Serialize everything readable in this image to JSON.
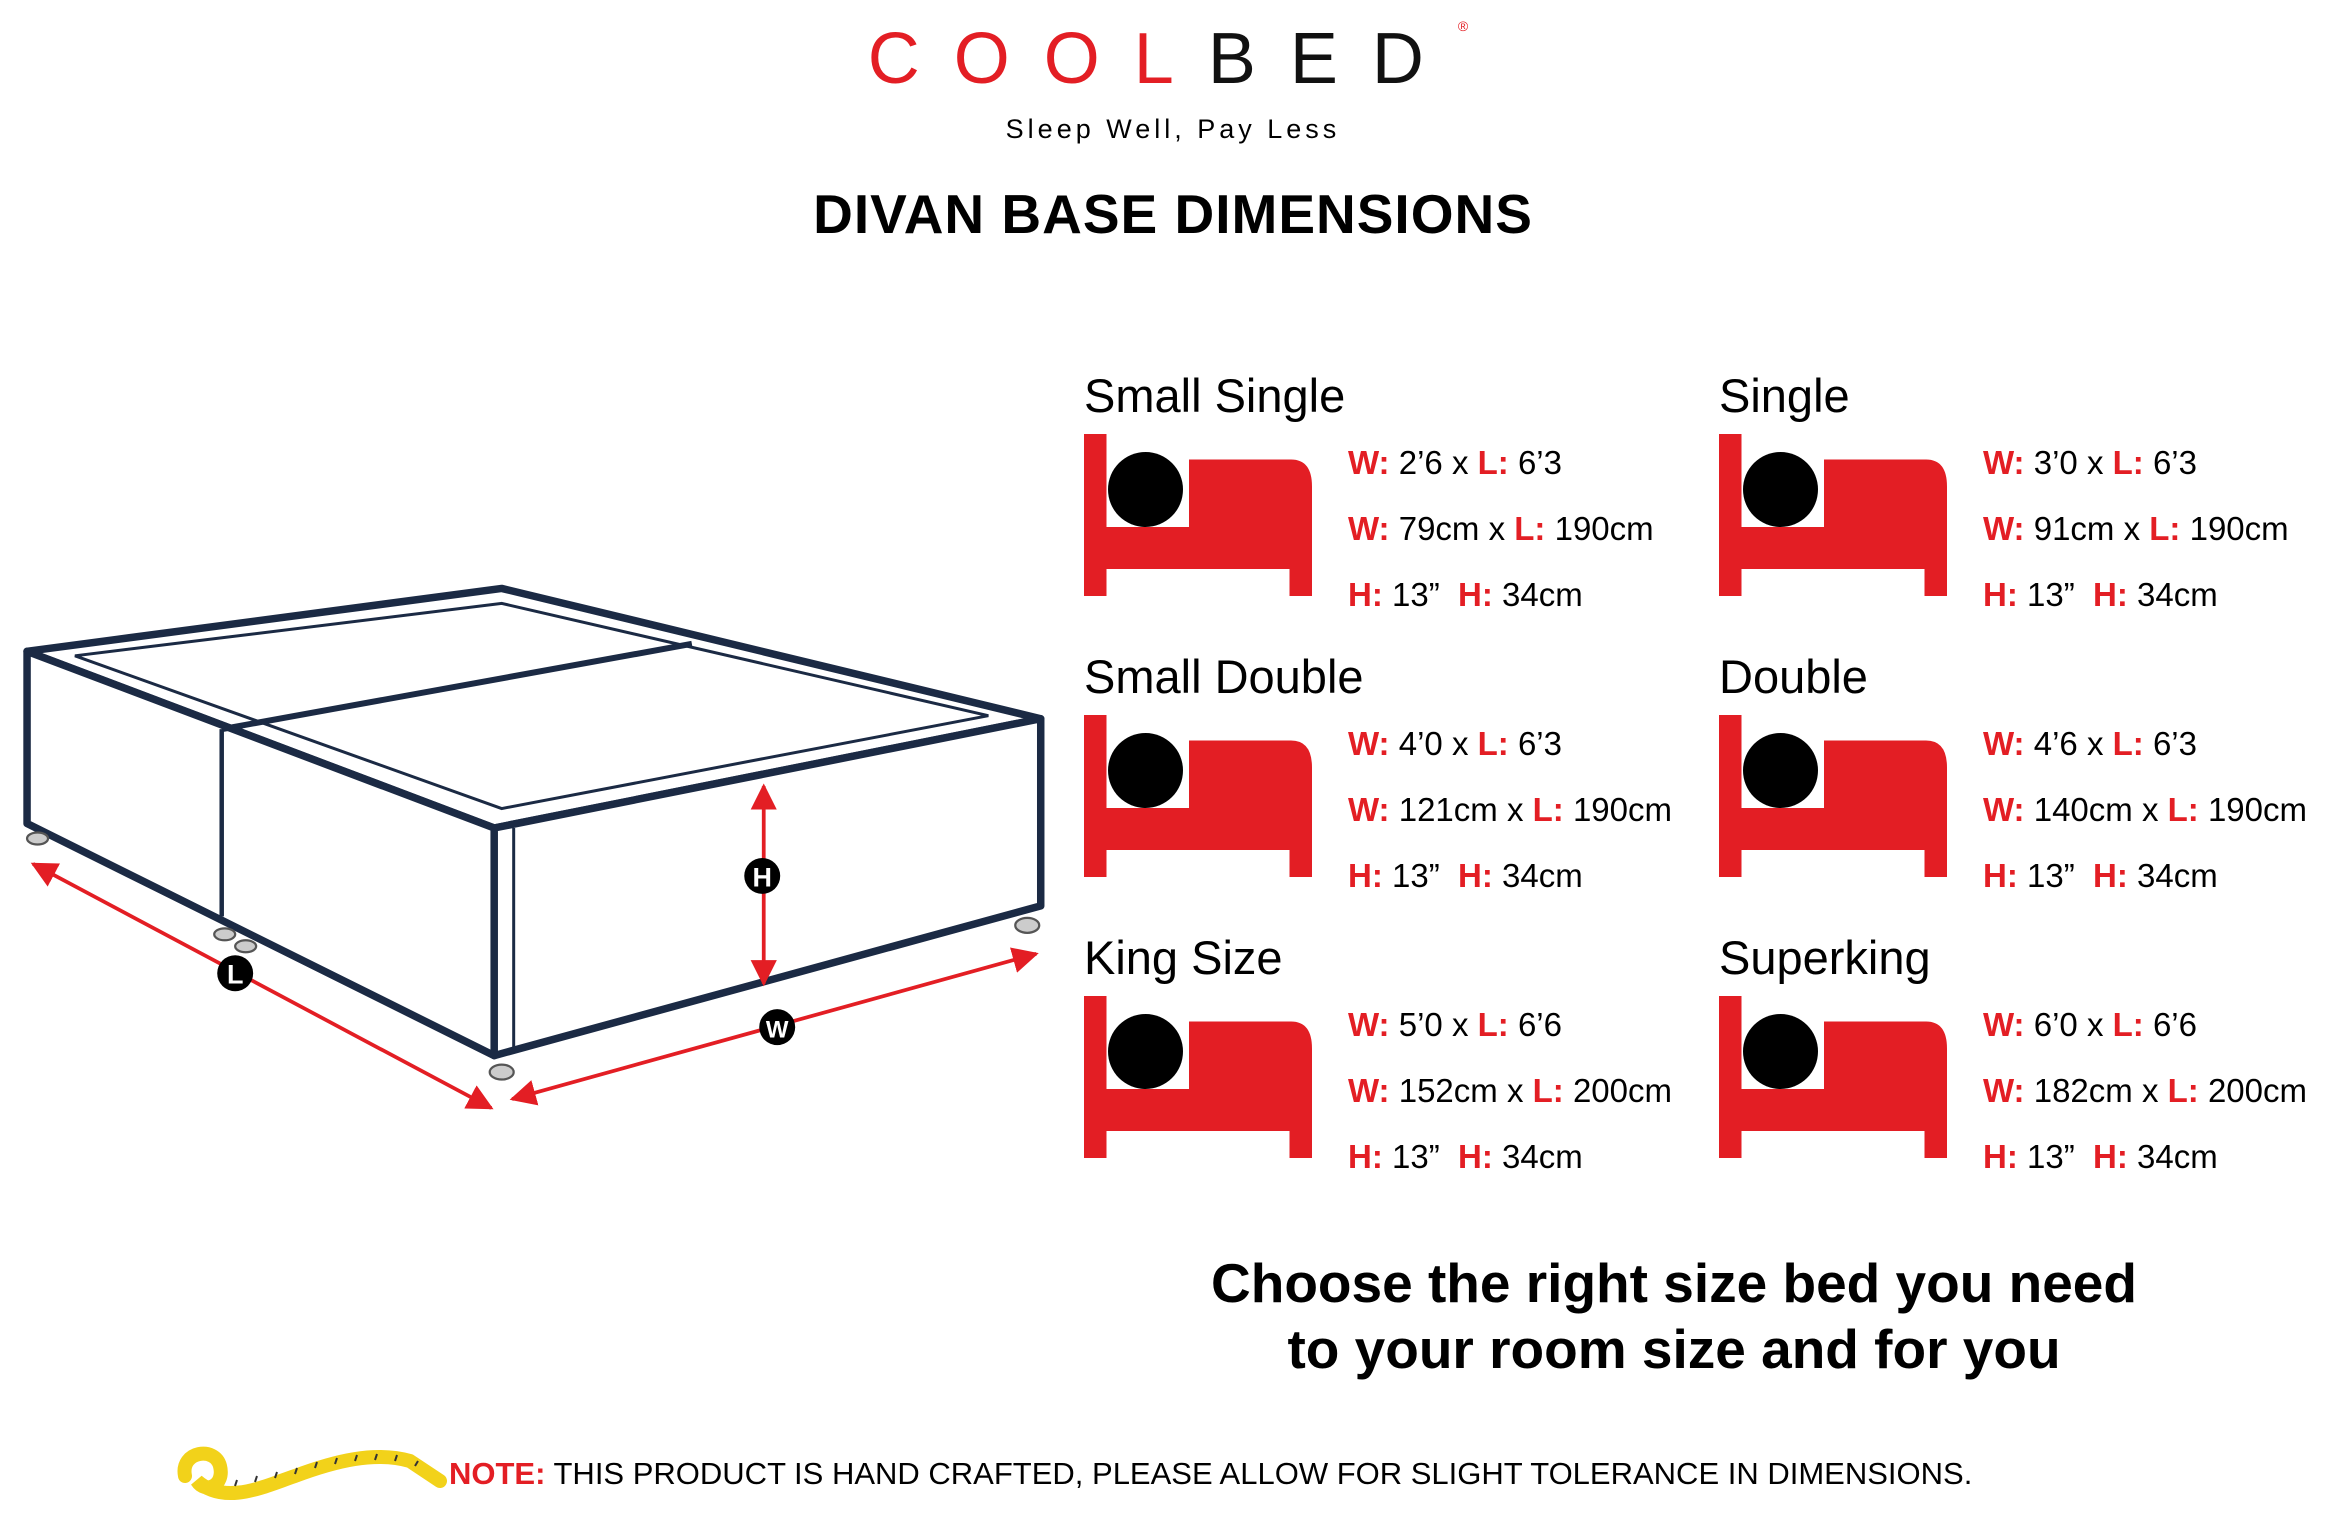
{
  "brand": {
    "logo_part1": "COOL",
    "logo_part2": "BED",
    "registered": "®",
    "tagline": "Sleep Well, Pay Less"
  },
  "title": "DIVAN BASE DIMENSIONS",
  "diagram_labels": {
    "height": "H",
    "length": "L",
    "width": "W"
  },
  "accent_color": "#e31e24",
  "frame_color": "#1b2a44",
  "sizes": [
    {
      "name": "Small Single",
      "imperial_w": "2’6",
      "imperial_l": "6’3",
      "metric_w": "79cm",
      "metric_l": "190cm",
      "h_in": "13”",
      "h_cm": "34cm"
    },
    {
      "name": "Single",
      "imperial_w": "3’0",
      "imperial_l": "6’3",
      "metric_w": "91cm",
      "metric_l": "190cm",
      "h_in": "13”",
      "h_cm": "34cm"
    },
    {
      "name": "Small Double",
      "imperial_w": "4’0",
      "imperial_l": "6’3",
      "metric_w": "121cm",
      "metric_l": "190cm",
      "h_in": "13”",
      "h_cm": "34cm"
    },
    {
      "name": "Double",
      "imperial_w": "4’6",
      "imperial_l": "6’3",
      "metric_w": "140cm",
      "metric_l": "190cm",
      "h_in": "13”",
      "h_cm": "34cm"
    },
    {
      "name": "King Size",
      "imperial_w": "5’0",
      "imperial_l": "6’6",
      "metric_w": "152cm",
      "metric_l": "200cm",
      "h_in": "13”",
      "h_cm": "34cm"
    },
    {
      "name": "Superking",
      "imperial_w": "6’0",
      "imperial_l": "6’6",
      "metric_w": "182cm",
      "metric_l": "200cm",
      "h_in": "13”",
      "h_cm": "34cm"
    }
  ],
  "labels": {
    "w": "W:",
    "l": "L:",
    "h": "H:",
    "x": "x"
  },
  "tagline_bottom": {
    "line1": "Choose the right size bed you need",
    "line2": "to your room size and for you"
  },
  "note": {
    "label": "NOTE:",
    "text": "THIS PRODUCT IS HAND CRAFTED, PLEASE ALLOW FOR SLIGHT TOLERANCE IN DIMENSIONS."
  }
}
